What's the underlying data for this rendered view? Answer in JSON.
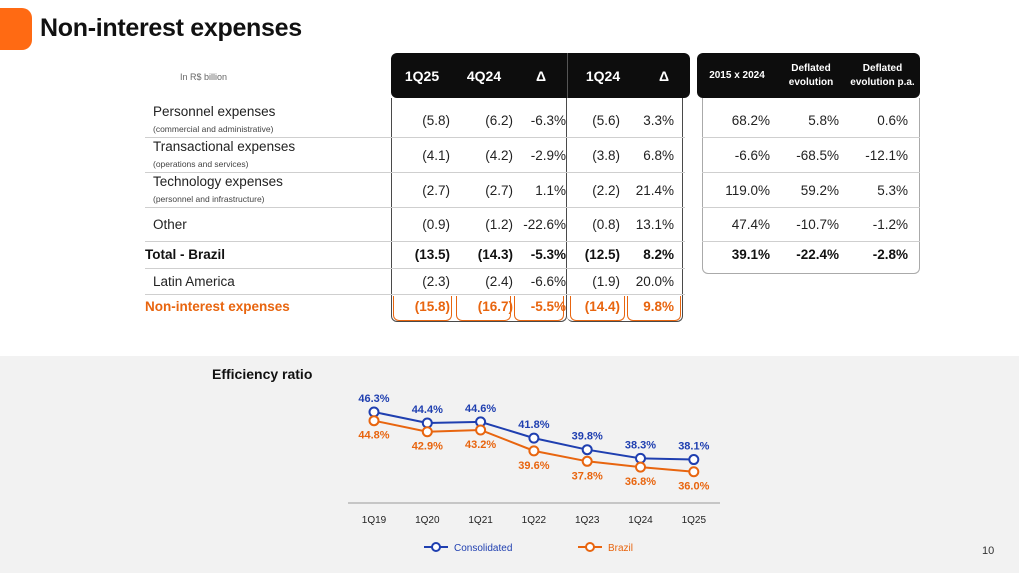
{
  "page": {
    "title": "Non-interest expenses",
    "page_number": "10",
    "unit": "In R$ billion"
  },
  "colors": {
    "accent": "#ff6a13",
    "consolidated": "#1f3fb0",
    "brazil": "#e8650f"
  },
  "table": {
    "headers": [
      "1Q25",
      "4Q24",
      "Δ",
      "1Q24",
      "Δ"
    ],
    "side_headers": [
      "2015 x 2024",
      "Deflated evolution",
      "Deflated evolution p.a."
    ],
    "rows": [
      {
        "label": "Personnel expenses",
        "sub": "(commercial and administrative)",
        "values": [
          "(5.8)",
          "(6.2)",
          "-6.3%",
          "(5.6)",
          "3.3%"
        ],
        "side": [
          "68.2%",
          "5.8%",
          "0.6%"
        ]
      },
      {
        "label": "Transactional expenses",
        "sub": "(operations and services)",
        "values": [
          "(4.1)",
          "(4.2)",
          "-2.9%",
          "(3.8)",
          "6.8%"
        ],
        "side": [
          "-6.6%",
          "-68.5%",
          "-12.1%"
        ]
      },
      {
        "label": "Technology expenses",
        "sub": "(personnel and infrastructure)",
        "values": [
          "(2.7)",
          "(2.7)",
          "1.1%",
          "(2.2)",
          "21.4%"
        ],
        "side": [
          "119.0%",
          "59.2%",
          "5.3%"
        ]
      },
      {
        "label": "Other",
        "sub": "",
        "values": [
          "(0.9)",
          "(1.2)",
          "-22.6%",
          "(0.8)",
          "13.1%"
        ],
        "side": [
          "47.4%",
          "-10.7%",
          "-1.2%"
        ]
      },
      {
        "label": "Total - Brazil",
        "sub": "",
        "values": [
          "(13.5)",
          "(14.3)",
          "-5.3%",
          "(12.5)",
          "8.2%"
        ],
        "side": [
          "39.1%",
          "-22.4%",
          "-2.8%"
        ]
      },
      {
        "label": "Latin America",
        "sub": "",
        "values": [
          "(2.3)",
          "(2.4)",
          "-6.6%",
          "(1.9)",
          "20.0%"
        ],
        "side": []
      },
      {
        "label": "Non-interest expenses",
        "sub": "",
        "values": [
          "(15.8)",
          "(16.7)",
          "-5.5%",
          "(14.4)",
          "9.8%"
        ],
        "side": []
      }
    ]
  },
  "chart_data": {
    "type": "line",
    "title": "Efficiency ratio",
    "categories": [
      "1Q19",
      "1Q20",
      "1Q21",
      "1Q22",
      "1Q23",
      "1Q24",
      "1Q25"
    ],
    "series": [
      {
        "name": "Consolidated",
        "values": [
          46.3,
          44.4,
          44.6,
          41.8,
          39.8,
          38.3,
          38.1
        ],
        "labels": [
          "46.3%",
          "44.4%",
          "44.6%",
          "41.8%",
          "39.8%",
          "38.3%",
          "38.1%"
        ]
      },
      {
        "name": "Brazil",
        "values": [
          44.8,
          42.9,
          43.2,
          39.6,
          37.8,
          36.8,
          36.0
        ],
        "labels": [
          "44.8%",
          "42.9%",
          "43.2%",
          "39.6%",
          "37.8%",
          "36.8%",
          "36.0%"
        ]
      }
    ],
    "legend": "bottom"
  }
}
